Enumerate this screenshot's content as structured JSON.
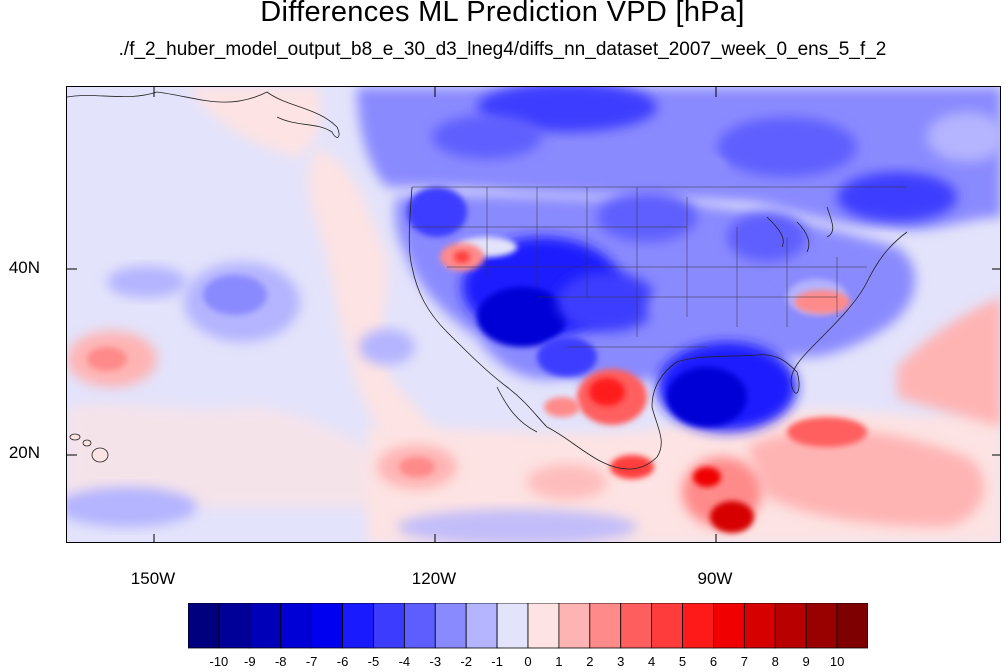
{
  "title": "Differences ML Prediction VPD [hPa]",
  "subtitle": "./f_2_huber_model_output_b8_e_30_d3_lneg4/diffs_nn_dataset_2007_week_0_ens_5_f_2",
  "axes": {
    "lat_ticks": [
      {
        "value": 40,
        "label": "40N"
      },
      {
        "value": 20,
        "label": "20N"
      }
    ],
    "lon_ticks": [
      {
        "value": -150,
        "label": "150W"
      },
      {
        "value": -120,
        "label": "120W"
      },
      {
        "value": -90,
        "label": "90W"
      }
    ],
    "lon_range": [
      -159.3,
      -59.3
    ],
    "lat_range": [
      10.5,
      59.5
    ]
  },
  "colorbar": {
    "labels": [
      "-10",
      "-9",
      "-8",
      "-7",
      "-6",
      "-5",
      "-4",
      "-3",
      "-2",
      "-1",
      "0",
      "1",
      "2",
      "3",
      "4",
      "5",
      "6",
      "7",
      "8",
      "9",
      "10"
    ],
    "colors": [
      "#00007f",
      "#000099",
      "#0000b8",
      "#0000d6",
      "#0000f0",
      "#1a1aff",
      "#3c3cff",
      "#5e5eff",
      "#8a8aff",
      "#b4b4ff",
      "#e3e3fb",
      "#fde3e3",
      "#ffb4b4",
      "#ff8a8a",
      "#ff5e5e",
      "#ff3c3c",
      "#ff1a1a",
      "#f00000",
      "#d60000",
      "#b80000",
      "#990000",
      "#7f0000"
    ]
  }
}
